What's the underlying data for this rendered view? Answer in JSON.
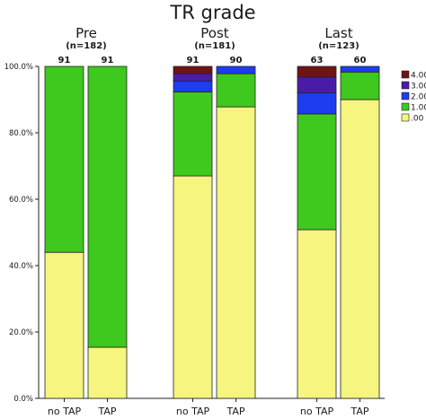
{
  "chart_data": {
    "type": "bar",
    "stacked": true,
    "title": "TR grade",
    "ylim": [
      0,
      100
    ],
    "yticks": [
      "0.0%",
      "20.0%",
      "40.0%",
      "60.0%",
      "80.0%",
      "100.0%"
    ],
    "grid": false,
    "legend_position": "right",
    "groups": [
      {
        "name": "Pre",
        "n_label": "(n=182)"
      },
      {
        "name": "Post",
        "n_label": "(n=181)"
      },
      {
        "name": "Last",
        "n_label": "(n=123)"
      }
    ],
    "categories": [
      "no TAP",
      "TAP",
      "no TAP",
      "TAP",
      "no TAP",
      "TAP"
    ],
    "bar_group": [
      0,
      0,
      1,
      1,
      2,
      2
    ],
    "bar_counts": [
      "91",
      "91",
      "91",
      "90",
      "63",
      "60"
    ],
    "series": [
      {
        "name": ".00",
        "color": "#f5f57f",
        "values": [
          44.0,
          15.4,
          67.0,
          87.8,
          50.8,
          90.0
        ]
      },
      {
        "name": "1.00",
        "color": "#3fc81e",
        "values": [
          56.0,
          84.6,
          25.3,
          10.0,
          34.9,
          8.3
        ]
      },
      {
        "name": "2.00",
        "color": "#1e3cf0",
        "values": [
          0,
          0,
          3.3,
          2.2,
          6.3,
          1.7
        ]
      },
      {
        "name": "3.00",
        "color": "#4a1ba8",
        "values": [
          0,
          0,
          2.2,
          0,
          4.8,
          0
        ]
      },
      {
        "name": "4.00",
        "color": "#6e1414",
        "values": [
          0,
          0,
          2.2,
          0,
          3.2,
          0
        ]
      }
    ],
    "legend_order": [
      "4.00",
      "3.00",
      "2.00",
      "1.00",
      ".00"
    ]
  }
}
